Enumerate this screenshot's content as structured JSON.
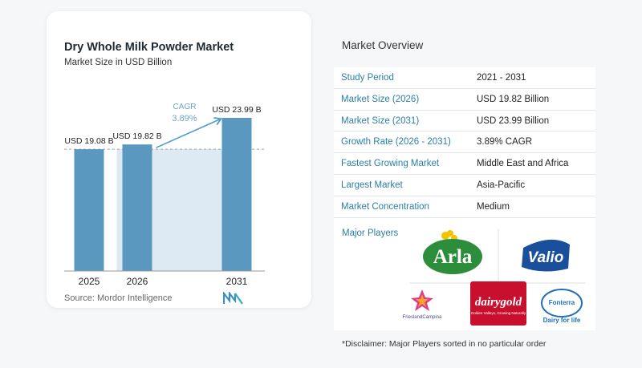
{
  "chart_data": {
    "type": "bar",
    "title": "Dry Whole Milk Powder Market",
    "subtitle": "Market Size in USD Billion",
    "categories": [
      "2025",
      "2026",
      "2031"
    ],
    "values": [
      19.08,
      19.82,
      23.99
    ],
    "value_labels": [
      "USD 19.08 B",
      "USD 19.82 B",
      "USD 23.99 B"
    ],
    "cagr_label": "CAGR",
    "cagr_value": "3.89%",
    "colors": {
      "bar": "#5b98c0",
      "shade": "#dde9f3",
      "cagr_text": "#6fa3c8",
      "arrow": "#4d9ccf"
    }
  },
  "source": "Source:  Mordor Intelligence",
  "overview": {
    "title": "Market Overview",
    "rows": [
      {
        "key": "Study Period",
        "value": "2021 - 2031"
      },
      {
        "key": "Market Size (2026)",
        "value": "USD 19.82 Billion"
      },
      {
        "key": "Market Size (2031)",
        "value": "USD 23.99 Billion"
      },
      {
        "key": "Growth Rate (2026 - 2031)",
        "value": "3.89% CAGR"
      },
      {
        "key": "Fastest Growing Market",
        "value": "Middle East and Africa"
      },
      {
        "key": "Largest Market",
        "value": "Asia-Pacific"
      },
      {
        "key": "Market Concentration",
        "value": "Medium"
      }
    ],
    "players_label": "Major Players",
    "players": [
      "Arla",
      "Valio",
      "FrieslandCampina",
      "dairygold",
      "Fonterra"
    ],
    "logo_text": {
      "arla": "Arla",
      "valio": "Valio",
      "friesland": "FrieslandCampina",
      "dairygold": "dairygold",
      "dairygold_tag": "Golden Valleys, Growing Naturally",
      "fonterra": "Fonterra",
      "fonterra_tag": "Dairy for life"
    },
    "disclaimer": "*Disclaimer: Major Players sorted in no particular order"
  }
}
